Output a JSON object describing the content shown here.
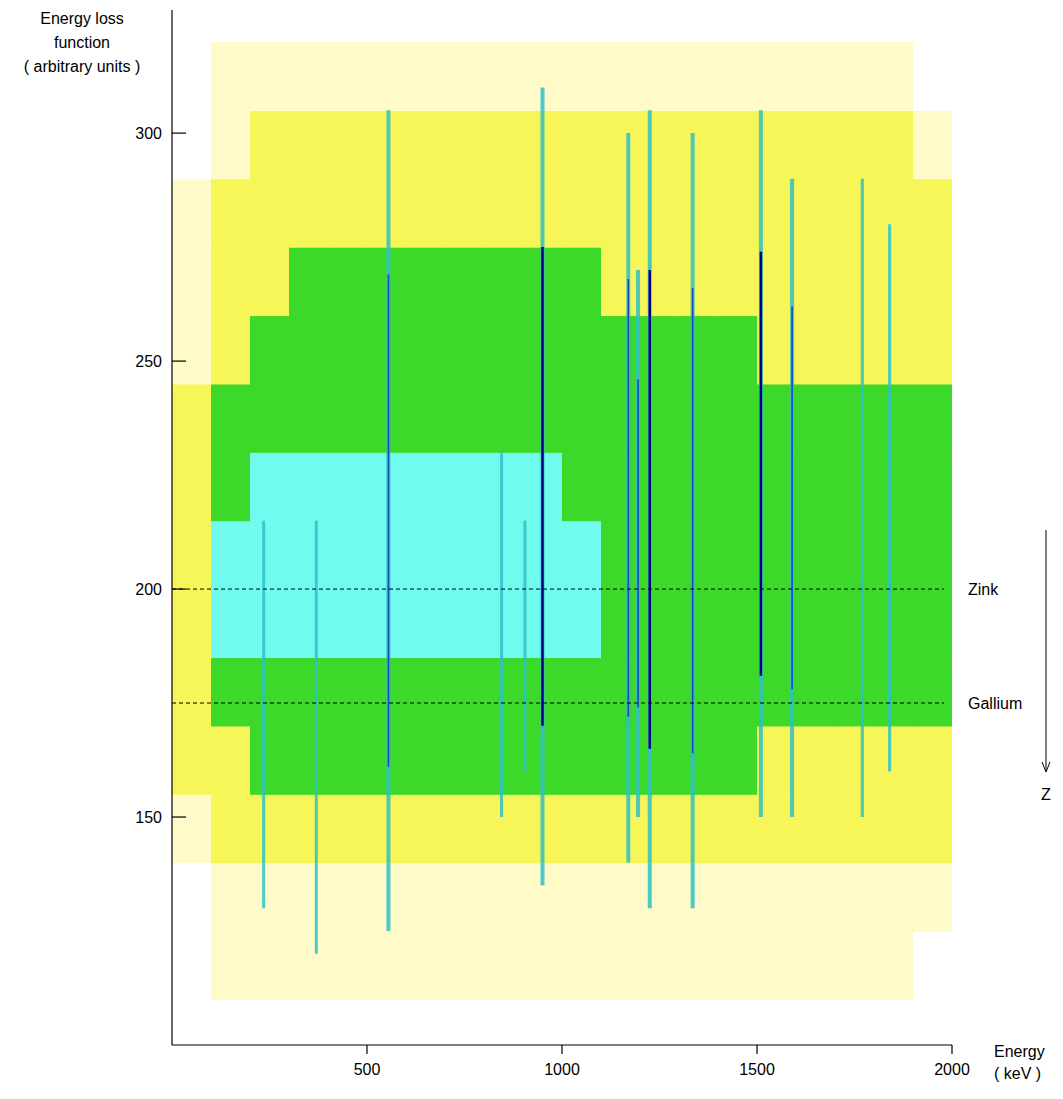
{
  "chart_data": {
    "type": "heatmap",
    "y_label": [
      "Energy loss",
      "function",
      "( arbitrary units )"
    ],
    "x_label": [
      "Energy",
      "( keV )"
    ],
    "xlim": [
      0,
      2000
    ],
    "xticks": [
      500,
      1000,
      1500,
      2000
    ],
    "ylim": [
      100,
      327
    ],
    "yticks": [
      150,
      200,
      250,
      300
    ],
    "grid": false,
    "x_bins": [
      0,
      100,
      200,
      300,
      400,
      500,
      600,
      700,
      800,
      900,
      1000,
      1100,
      1200,
      1300,
      1400,
      1500,
      1600,
      1700,
      1800,
      1900,
      2000
    ],
    "y_bins": [
      110,
      125,
      140,
      155,
      170,
      185,
      200,
      215,
      230,
      245,
      260,
      275,
      290,
      305,
      320
    ],
    "cells": [
      [
        0,
        1,
        1,
        1,
        1,
        1,
        1,
        1,
        1,
        1,
        1,
        1,
        1,
        1,
        1,
        1,
        1,
        1,
        1,
        0
      ],
      [
        0,
        1,
        1,
        1,
        1,
        1,
        1,
        1,
        1,
        1,
        1,
        1,
        1,
        1,
        1,
        1,
        1,
        1,
        1,
        1
      ],
      [
        1,
        2,
        2,
        2,
        2,
        2,
        2,
        2,
        2,
        2,
        2,
        2,
        2,
        2,
        2,
        2,
        2,
        2,
        2,
        2
      ],
      [
        2,
        2,
        3,
        3,
        3,
        3,
        3,
        3,
        3,
        3,
        3,
        3,
        3,
        3,
        3,
        2,
        2,
        2,
        2,
        2
      ],
      [
        2,
        3,
        3,
        3,
        3,
        3,
        3,
        3,
        3,
        3,
        3,
        3,
        3,
        3,
        3,
        3,
        3,
        3,
        3,
        3
      ],
      [
        2,
        4,
        4,
        4,
        4,
        4,
        4,
        4,
        4,
        4,
        4,
        3,
        3,
        3,
        3,
        3,
        3,
        3,
        3,
        3
      ],
      [
        2,
        4,
        4,
        4,
        4,
        4,
        4,
        4,
        4,
        4,
        4,
        3,
        3,
        3,
        3,
        3,
        3,
        3,
        3,
        3
      ],
      [
        2,
        3,
        4,
        4,
        4,
        4,
        4,
        4,
        4,
        4,
        3,
        3,
        3,
        3,
        3,
        3,
        3,
        3,
        3,
        3
      ],
      [
        2,
        3,
        3,
        3,
        3,
        3,
        3,
        3,
        3,
        3,
        3,
        3,
        3,
        3,
        3,
        3,
        3,
        3,
        3,
        3
      ],
      [
        1,
        2,
        3,
        3,
        3,
        3,
        3,
        3,
        3,
        3,
        3,
        3,
        3,
        3,
        3,
        2,
        2,
        2,
        2,
        2
      ],
      [
        1,
        2,
        2,
        3,
        3,
        3,
        3,
        3,
        3,
        3,
        3,
        2,
        2,
        2,
        2,
        2,
        2,
        2,
        2,
        2
      ],
      [
        1,
        2,
        2,
        2,
        2,
        2,
        2,
        2,
        2,
        2,
        2,
        2,
        2,
        2,
        2,
        2,
        2,
        2,
        2,
        2
      ],
      [
        0,
        1,
        2,
        2,
        2,
        2,
        2,
        2,
        2,
        2,
        2,
        2,
        2,
        2,
        2,
        2,
        2,
        2,
        2,
        1
      ],
      [
        0,
        1,
        1,
        1,
        1,
        1,
        1,
        1,
        1,
        1,
        1,
        1,
        1,
        1,
        1,
        1,
        1,
        1,
        1,
        0
      ]
    ],
    "lines": {
      "x": [
        235,
        370,
        555,
        845,
        905,
        950,
        1170,
        1195,
        1225,
        1335,
        1510,
        1590,
        1770,
        1840
      ],
      "ymin": [
        130,
        120,
        125,
        150,
        160,
        135,
        140,
        150,
        130,
        130,
        150,
        150,
        150,
        160
      ],
      "ymax": [
        215,
        215,
        305,
        230,
        215,
        310,
        300,
        270,
        305,
        300,
        305,
        290,
        290,
        280
      ],
      "intensity": [
        1,
        1,
        2,
        1,
        1,
        3,
        2,
        2,
        3,
        2,
        3,
        2,
        1,
        1
      ]
    },
    "annotations": [
      {
        "text": "Zink",
        "y": 200
      },
      {
        "text": "Gallium",
        "y": 175
      }
    ],
    "arrow_label": "Z"
  }
}
